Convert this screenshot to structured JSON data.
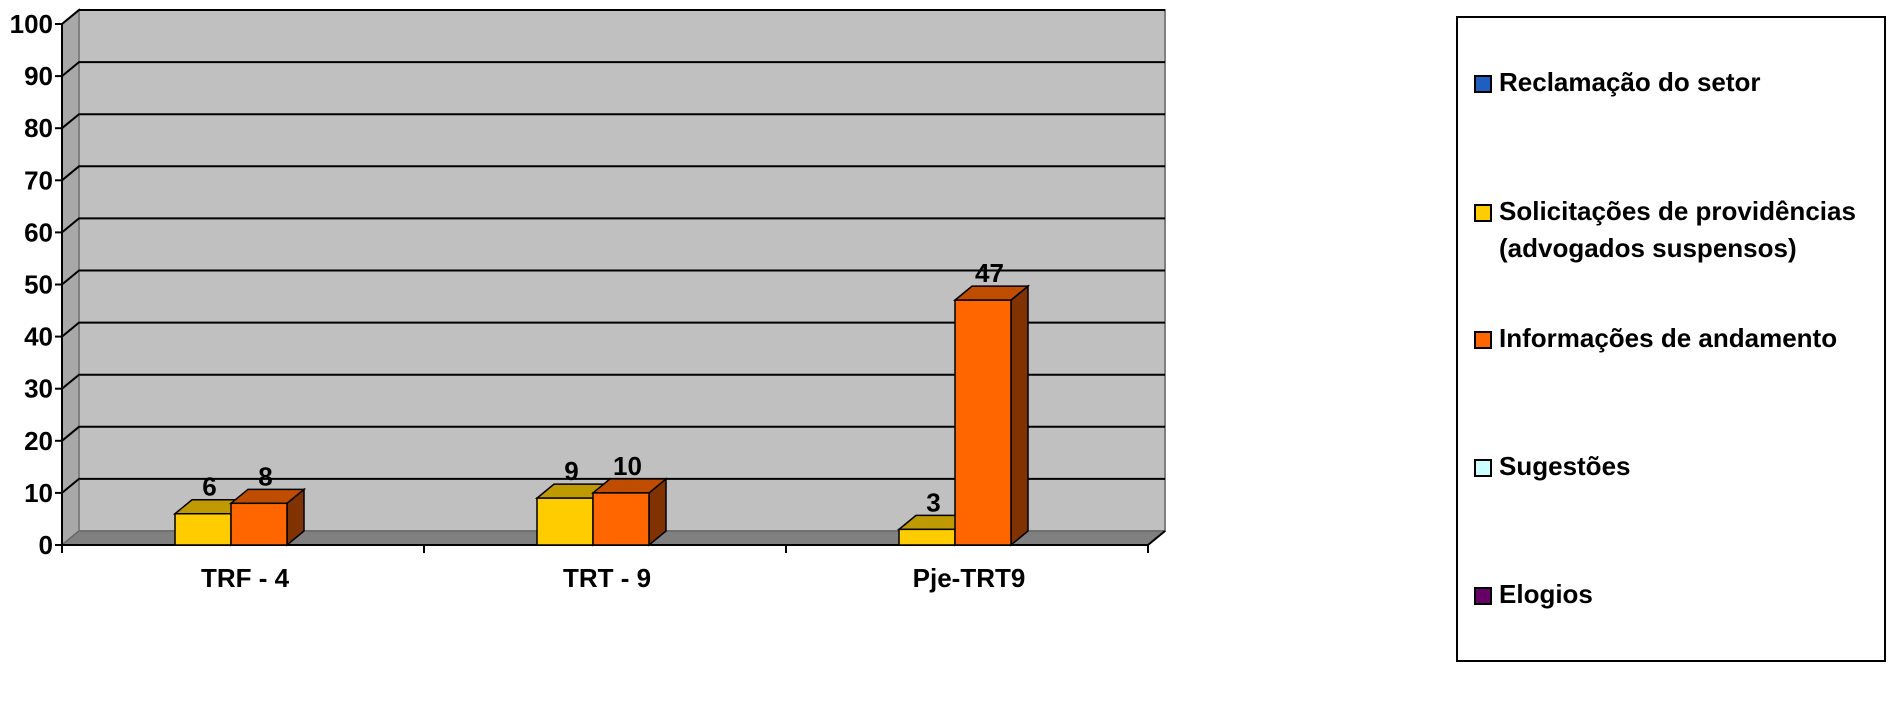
{
  "chart_data": {
    "type": "bar",
    "categories": [
      "TRF - 4",
      "TRT - 9",
      "Pje-TRT9"
    ],
    "series": [
      {
        "name": "Reclamação do setor",
        "color": "#1f5fbf",
        "values": [
          0,
          0,
          0
        ]
      },
      {
        "name": "Solicitações de providências (advogados suspensos)",
        "color": "#ffcc00",
        "values": [
          6,
          9,
          3
        ]
      },
      {
        "name": "Informações de andamento",
        "color": "#ff6600",
        "values": [
          8,
          10,
          47
        ]
      },
      {
        "name": "Sugestões",
        "color": "#ccffff",
        "values": [
          0,
          0,
          0
        ]
      },
      {
        "name": "Elogios",
        "color": "#660066",
        "values": [
          0,
          0,
          0
        ]
      }
    ],
    "ylim": [
      0,
      100
    ],
    "yticks": [
      "0",
      "10",
      "20",
      "30",
      "40",
      "50",
      "60",
      "70",
      "80",
      "90",
      "100"
    ],
    "data_labels": [
      [
        "6",
        "8"
      ],
      [
        "9",
        "10"
      ],
      [
        "3",
        "47"
      ]
    ],
    "grid": true,
    "legend_position": "right",
    "style": "3d-column"
  },
  "legend": {
    "items": [
      {
        "lines": [
          "Reclamação do setor"
        ],
        "color": "#1f5fbf"
      },
      {
        "lines": [
          "Solicitações de providências",
          "(advogados suspensos)"
        ],
        "color": "#ffcc00"
      },
      {
        "lines": [
          "Informações de andamento"
        ],
        "color": "#ff6600"
      },
      {
        "lines": [
          "Sugestões"
        ],
        "color": "#ccffff"
      },
      {
        "lines": [
          "Elogios"
        ],
        "color": "#660066"
      }
    ]
  }
}
